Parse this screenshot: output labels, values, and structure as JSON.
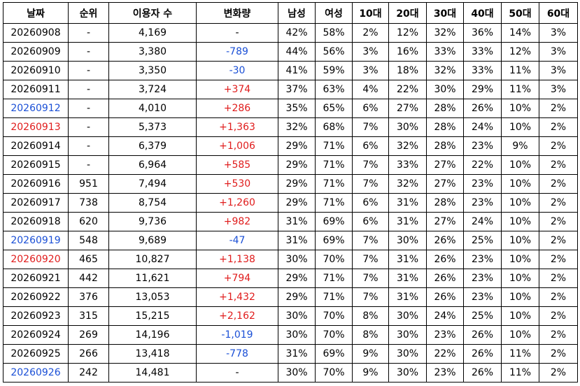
{
  "table": {
    "columns": [
      "날짜",
      "순위",
      "이용자 수",
      "변화량",
      "남성",
      "여성",
      "10대",
      "20대",
      "30대",
      "40대",
      "50대",
      "60대"
    ],
    "rows": [
      [
        "20260908",
        "-",
        "4,169",
        "-",
        "42%",
        "58%",
        "2%",
        "12%",
        "32%",
        "36%",
        "14%",
        "3%"
      ],
      [
        "20260909",
        "-",
        "3,380",
        "-789",
        "44%",
        "56%",
        "3%",
        "16%",
        "33%",
        "33%",
        "12%",
        "3%"
      ],
      [
        "20260910",
        "-",
        "3,350",
        "-30",
        "41%",
        "59%",
        "3%",
        "18%",
        "32%",
        "33%",
        "11%",
        "3%"
      ],
      [
        "20260911",
        "-",
        "3,724",
        "+374",
        "37%",
        "63%",
        "4%",
        "22%",
        "30%",
        "29%",
        "11%",
        "3%"
      ],
      [
        "20260912",
        "-",
        "4,010",
        "+286",
        "35%",
        "65%",
        "6%",
        "27%",
        "28%",
        "26%",
        "10%",
        "2%"
      ],
      [
        "20260913",
        "-",
        "5,373",
        "+1,363",
        "32%",
        "68%",
        "7%",
        "30%",
        "28%",
        "24%",
        "10%",
        "2%"
      ],
      [
        "20260914",
        "-",
        "6,379",
        "+1,006",
        "29%",
        "71%",
        "6%",
        "32%",
        "28%",
        "23%",
        "9%",
        "2%"
      ],
      [
        "20260915",
        "-",
        "6,964",
        "+585",
        "29%",
        "71%",
        "7%",
        "33%",
        "27%",
        "22%",
        "10%",
        "2%"
      ],
      [
        "20260916",
        "951",
        "7,494",
        "+530",
        "29%",
        "71%",
        "7%",
        "32%",
        "27%",
        "23%",
        "10%",
        "2%"
      ],
      [
        "20260917",
        "738",
        "8,754",
        "+1,260",
        "29%",
        "71%",
        "6%",
        "31%",
        "28%",
        "23%",
        "10%",
        "2%"
      ],
      [
        "20260918",
        "620",
        "9,736",
        "+982",
        "31%",
        "69%",
        "6%",
        "31%",
        "27%",
        "24%",
        "10%",
        "2%"
      ],
      [
        "20260919",
        "548",
        "9,689",
        "-47",
        "31%",
        "69%",
        "7%",
        "30%",
        "26%",
        "25%",
        "10%",
        "2%"
      ],
      [
        "20260920",
        "465",
        "10,827",
        "+1,138",
        "30%",
        "70%",
        "7%",
        "31%",
        "26%",
        "23%",
        "10%",
        "2%"
      ],
      [
        "20260921",
        "442",
        "11,621",
        "+794",
        "29%",
        "71%",
        "7%",
        "31%",
        "26%",
        "23%",
        "10%",
        "2%"
      ],
      [
        "20260922",
        "376",
        "13,053",
        "+1,432",
        "29%",
        "71%",
        "7%",
        "31%",
        "26%",
        "23%",
        "10%",
        "2%"
      ],
      [
        "20260923",
        "315",
        "15,215",
        "+2,162",
        "30%",
        "70%",
        "8%",
        "30%",
        "24%",
        "25%",
        "10%",
        "2%"
      ],
      [
        "20260924",
        "269",
        "14,196",
        "-1,019",
        "30%",
        "70%",
        "8%",
        "30%",
        "23%",
        "26%",
        "10%",
        "2%"
      ],
      [
        "20260925",
        "266",
        "13,418",
        "-778",
        "31%",
        "69%",
        "9%",
        "30%",
        "22%",
        "26%",
        "11%",
        "2%"
      ],
      [
        "20260926",
        "242",
        "14,481",
        "-",
        "30%",
        "70%",
        "9%",
        "30%",
        "23%",
        "26%",
        "11%",
        "2%"
      ]
    ],
    "date_colors": [
      "#000000",
      "#000000",
      "#000000",
      "#000000",
      "#1a4fd6",
      "#e01c1c",
      "#000000",
      "#000000",
      "#000000",
      "#000000",
      "#000000",
      "#1a4fd6",
      "#e01c1c",
      "#000000",
      "#000000",
      "#000000",
      "#000000",
      "#000000",
      "#1a4fd6"
    ],
    "change_colors": [
      "#000000",
      "#1a4fd6",
      "#1a4fd6",
      "#e01c1c",
      "#e01c1c",
      "#e01c1c",
      "#e01c1c",
      "#e01c1c",
      "#e01c1c",
      "#e01c1c",
      "#e01c1c",
      "#1a4fd6",
      "#e01c1c",
      "#e01c1c",
      "#e01c1c",
      "#e01c1c",
      "#1a4fd6",
      "#1a4fd6",
      "#000000"
    ]
  }
}
